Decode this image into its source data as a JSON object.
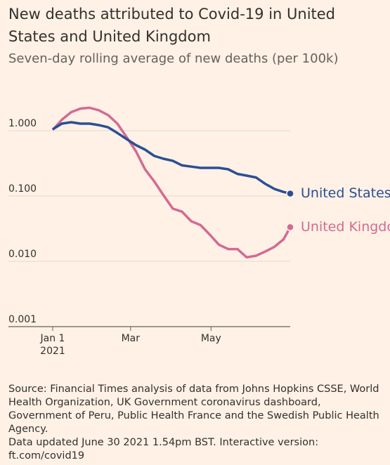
{
  "chart_data": {
    "type": "line",
    "title": "New deaths attributed to Covid-19 in United States and United Kingdom",
    "subtitle": "Seven-day rolling average of new deaths (per 100k)",
    "x": [
      0,
      7,
      14,
      21,
      28,
      35,
      42,
      49,
      56,
      63,
      70,
      77,
      84,
      91,
      98,
      105,
      112,
      119,
      126,
      133,
      140,
      147,
      154,
      161,
      168,
      175,
      180
    ],
    "xlim": [
      0,
      180
    ],
    "xticks": [
      {
        "value": 0,
        "label": "Jan 1"
      },
      {
        "value": 59,
        "label": "Mar"
      },
      {
        "value": 120,
        "label": "May"
      }
    ],
    "year_label": "2021",
    "log_scale": true,
    "ylim": [
      0.001,
      1.8
    ],
    "yticks": [
      0.001,
      {
        "value": 0.01,
        "label": "0.010"
      },
      {
        "value": 0.1,
        "label": "0.100"
      },
      {
        "value": 1,
        "label": "1.000"
      }
    ],
    "grid": true,
    "series": [
      {
        "name": "United States",
        "color": "#2a4f95",
        "values": [
          0.82,
          1.0,
          1.05,
          1.0,
          1.0,
          0.95,
          0.88,
          0.72,
          0.58,
          0.47,
          0.4,
          0.32,
          0.29,
          0.27,
          0.23,
          0.22,
          0.21,
          0.21,
          0.21,
          0.2,
          0.17,
          0.16,
          0.15,
          0.12,
          0.1,
          0.09,
          0.085
        ]
      },
      {
        "name": "United Kingdom",
        "color": "#d46a93",
        "values": [
          0.8,
          1.15,
          1.5,
          1.7,
          1.75,
          1.6,
          1.35,
          1.0,
          0.62,
          0.38,
          0.2,
          0.13,
          0.08,
          0.05,
          0.045,
          0.032,
          0.028,
          0.02,
          0.014,
          0.012,
          0.012,
          0.009,
          0.0095,
          0.011,
          0.013,
          0.017,
          0.026
        ]
      }
    ],
    "source": "Source: Financial Times analysis of data from Johns Hopkins CSSE, World Health Organization, UK Government coronavirus dashboard, Government of Peru, Public Health France and the Swedish Public Health Agency.",
    "updated": "Data updated June 30 2021 1.54pm BST. Interactive version: ft.com/covid19"
  }
}
